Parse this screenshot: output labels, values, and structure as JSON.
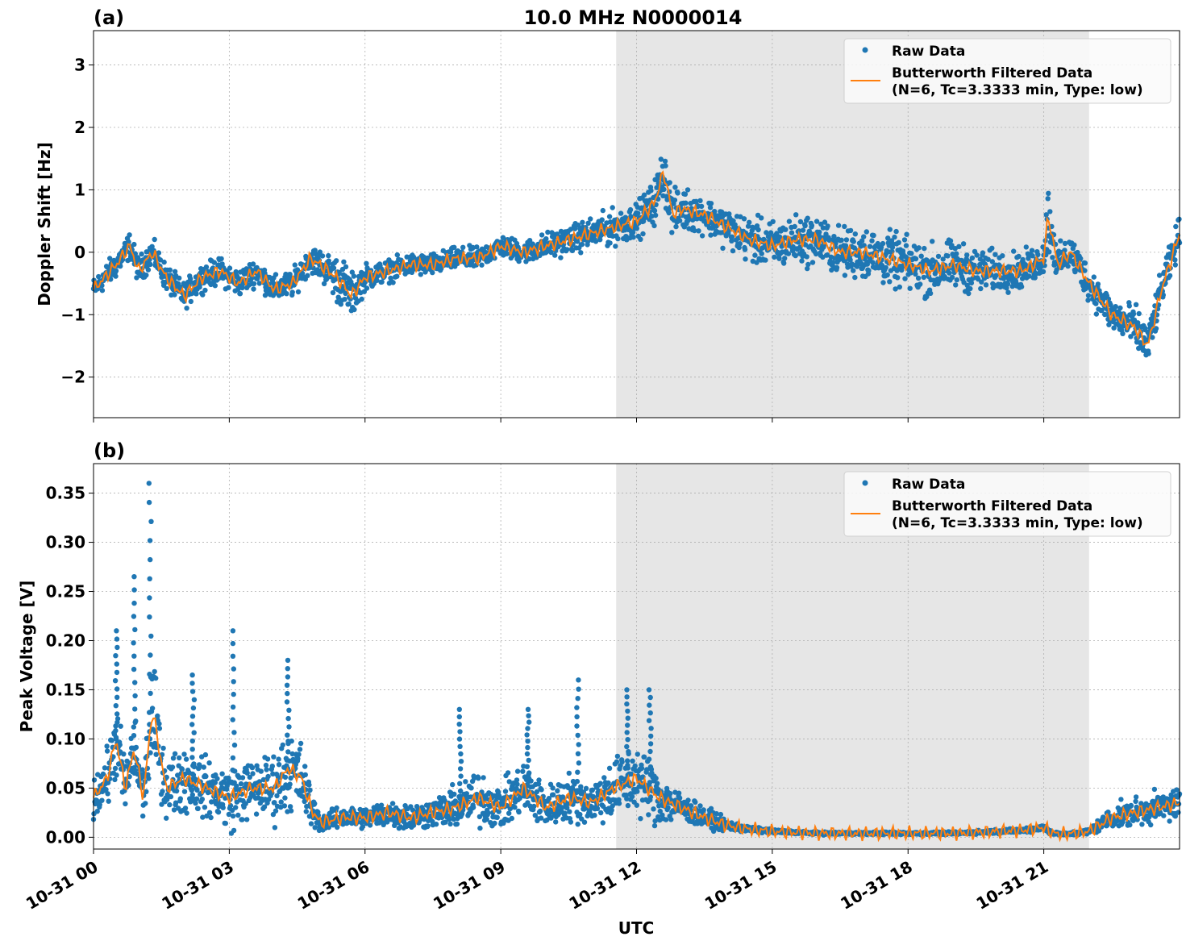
{
  "title": "10.0 MHz N0000014",
  "x_label": "UTC",
  "shading": {
    "start_hour": 11.55,
    "end_hour": 22.0,
    "color": "#e6e6e6"
  },
  "colors": {
    "raw": "#1f77b4",
    "filtered": "#ff7f0e",
    "grid": "#b0b0b0"
  },
  "legend": {
    "raw_label": "Raw Data",
    "filtered_label_line1": "Butterworth Filtered Data",
    "filtered_label_line2": "(N=6, Tc=3.3333 min, Type: low)",
    "placement": "top-right"
  },
  "chart_data": [
    {
      "type": "scatter",
      "panel_label": "(a)",
      "ylabel": "Doppler Shift [Hz]",
      "xlim": [
        "10-31 00:00",
        "10-31 24:00"
      ],
      "ylim": [
        -2.65,
        3.55
      ],
      "yticks": [
        -2,
        -1,
        0,
        1,
        2,
        3
      ],
      "ytick_labels": [
        "−2",
        "−1",
        "0",
        "1",
        "2",
        "3"
      ],
      "xticks_hours": [
        0,
        3,
        6,
        9,
        12,
        15,
        18,
        21
      ],
      "grid": true,
      "series": [
        {
          "name": "Butterworth Filtered Data",
          "style": "line",
          "x_hours": [
            0,
            0.5,
            0.8,
            1.0,
            1.3,
            1.6,
            2.0,
            2.4,
            2.8,
            3.2,
            3.6,
            4.0,
            4.4,
            4.8,
            5.2,
            5.5,
            5.7,
            6.0,
            6.5,
            7.0,
            7.5,
            8.0,
            8.5,
            9.0,
            9.5,
            10.0,
            10.5,
            11.0,
            11.5,
            12.0,
            12.4,
            12.6,
            12.8,
            13.0,
            13.5,
            14.0,
            14.5,
            15.0,
            15.5,
            16.0,
            16.5,
            17.0,
            17.5,
            18.0,
            18.5,
            19.0,
            19.5,
            20.0,
            20.5,
            21.0,
            21.1,
            21.3,
            21.6,
            22.0,
            22.5,
            23.0,
            23.3,
            23.6,
            24.0
          ],
          "values": [
            -0.6,
            -0.2,
            0.1,
            -0.3,
            0.0,
            -0.4,
            -0.7,
            -0.4,
            -0.3,
            -0.5,
            -0.3,
            -0.6,
            -0.5,
            -0.1,
            -0.3,
            -0.5,
            -0.7,
            -0.4,
            -0.3,
            -0.2,
            -0.2,
            -0.1,
            -0.1,
            0.1,
            0.0,
            0.1,
            0.2,
            0.3,
            0.4,
            0.5,
            0.8,
            1.3,
            0.6,
            0.7,
            0.6,
            0.4,
            0.2,
            0.1,
            0.2,
            0.2,
            0.0,
            0.0,
            -0.1,
            -0.2,
            -0.3,
            -0.2,
            -0.3,
            -0.3,
            -0.3,
            -0.1,
            0.6,
            -0.2,
            0.0,
            -0.5,
            -1.0,
            -1.2,
            -1.5,
            -0.6,
            0.3
          ]
        },
        {
          "name": "Raw Data",
          "style": "markers",
          "x_hours": [
            0,
            0.5,
            0.8,
            1.0,
            1.3,
            1.6,
            2.0,
            2.4,
            2.8,
            3.2,
            3.6,
            4.0,
            4.4,
            4.8,
            5.2,
            5.5,
            5.7,
            6.0,
            6.5,
            7.0,
            7.5,
            8.0,
            8.5,
            9.0,
            9.5,
            10.0,
            10.5,
            11.0,
            11.5,
            12.0,
            12.4,
            12.6,
            12.8,
            13.0,
            13.5,
            14.0,
            14.5,
            15.0,
            15.5,
            16.0,
            16.5,
            17.0,
            17.5,
            18.0,
            18.5,
            19.0,
            19.5,
            20.0,
            20.5,
            21.0,
            21.1,
            21.3,
            21.6,
            22.0,
            22.5,
            23.0,
            23.3,
            23.6,
            24.0
          ],
          "values": [
            -0.6,
            -0.2,
            0.1,
            -0.3,
            0.0,
            -0.4,
            -0.7,
            -0.4,
            -0.3,
            -0.5,
            -0.3,
            -0.6,
            -0.5,
            -0.1,
            -0.3,
            -0.5,
            -0.7,
            -0.4,
            -0.3,
            -0.2,
            -0.2,
            -0.1,
            -0.1,
            0.1,
            0.0,
            0.1,
            0.2,
            0.3,
            0.4,
            0.5,
            0.8,
            1.3,
            0.6,
            0.7,
            0.6,
            0.4,
            0.2,
            0.1,
            0.2,
            0.2,
            0.0,
            0.0,
            -0.1,
            -0.2,
            -0.3,
            -0.2,
            -0.3,
            -0.3,
            -0.3,
            -0.1,
            0.6,
            -0.2,
            0.0,
            -0.5,
            -1.0,
            -1.2,
            -1.5,
            -0.6,
            0.3
          ],
          "spread": [
            0.25,
            0.3,
            0.3,
            0.3,
            0.3,
            0.3,
            0.3,
            0.3,
            0.3,
            0.3,
            0.3,
            0.3,
            0.3,
            0.3,
            0.4,
            0.6,
            0.5,
            0.3,
            0.25,
            0.25,
            0.25,
            0.25,
            0.25,
            0.25,
            0.25,
            0.3,
            0.3,
            0.35,
            0.4,
            0.4,
            0.5,
            0.6,
            0.5,
            0.5,
            0.4,
            0.45,
            0.5,
            0.55,
            0.55,
            0.55,
            0.55,
            0.6,
            0.6,
            0.6,
            0.6,
            0.55,
            0.5,
            0.45,
            0.4,
            0.4,
            0.8,
            0.4,
            0.4,
            0.4,
            0.4,
            0.5,
            0.5,
            0.4,
            0.4
          ]
        }
      ]
    },
    {
      "type": "scatter",
      "panel_label": "(b)",
      "ylabel": "Peak Voltage [V]",
      "xlim": [
        "10-31 00:00",
        "10-31 24:00"
      ],
      "ylim": [
        -0.012,
        0.38
      ],
      "yticks": [
        0.0,
        0.05,
        0.1,
        0.15,
        0.2,
        0.25,
        0.3,
        0.35
      ],
      "ytick_labels": [
        "0.00",
        "0.05",
        "0.10",
        "0.15",
        "0.20",
        "0.25",
        "0.30",
        "0.35"
      ],
      "xticks_hours": [
        0,
        3,
        6,
        9,
        12,
        15,
        18,
        21
      ],
      "xtick_labels": [
        "10-31 00",
        "10-31 03",
        "10-31 06",
        "10-31 09",
        "10-31 12",
        "10-31 15",
        "10-31 18",
        "10-31 21"
      ],
      "grid": true,
      "series": [
        {
          "name": "Butterworth Filtered Data",
          "style": "line",
          "x_hours": [
            0,
            0.3,
            0.5,
            0.7,
            0.9,
            1.1,
            1.3,
            1.6,
            2.0,
            2.5,
            3.0,
            3.5,
            4.0,
            4.3,
            4.6,
            4.8,
            5.0,
            5.5,
            6.0,
            6.5,
            7.0,
            7.5,
            8.0,
            8.5,
            9.0,
            9.5,
            10.0,
            10.5,
            11.0,
            11.5,
            12.0,
            12.5,
            13.0,
            13.5,
            14.0,
            14.5,
            15.0,
            15.5,
            16.0,
            17.0,
            18.0,
            19.0,
            20.0,
            20.5,
            21.0,
            21.2,
            21.5,
            22.0,
            22.5,
            23.0,
            23.5,
            24.0
          ],
          "values": [
            0.04,
            0.06,
            0.1,
            0.05,
            0.09,
            0.04,
            0.13,
            0.05,
            0.06,
            0.05,
            0.04,
            0.05,
            0.05,
            0.07,
            0.06,
            0.03,
            0.015,
            0.02,
            0.02,
            0.025,
            0.02,
            0.025,
            0.03,
            0.04,
            0.03,
            0.05,
            0.03,
            0.04,
            0.035,
            0.05,
            0.06,
            0.04,
            0.03,
            0.02,
            0.012,
            0.008,
            0.006,
            0.005,
            0.004,
            0.004,
            0.004,
            0.004,
            0.006,
            0.007,
            0.01,
            0.004,
            0.003,
            0.006,
            0.02,
            0.025,
            0.03,
            0.035
          ]
        },
        {
          "name": "Raw Data",
          "style": "markers",
          "x_hours": [
            0,
            0.3,
            0.5,
            0.7,
            0.9,
            1.1,
            1.3,
            1.6,
            2.0,
            2.5,
            3.0,
            3.5,
            4.0,
            4.3,
            4.6,
            4.8,
            5.0,
            5.5,
            6.0,
            6.5,
            7.0,
            7.5,
            8.0,
            8.5,
            9.0,
            9.5,
            10.0,
            10.5,
            11.0,
            11.5,
            12.0,
            12.5,
            13.0,
            13.5,
            14.0,
            14.5,
            15.0,
            15.5,
            16.0,
            17.0,
            18.0,
            19.0,
            20.0,
            20.5,
            21.0,
            21.2,
            21.5,
            22.0,
            22.5,
            23.0,
            23.5,
            24.0
          ],
          "values": [
            0.04,
            0.06,
            0.1,
            0.05,
            0.09,
            0.04,
            0.13,
            0.05,
            0.06,
            0.05,
            0.04,
            0.05,
            0.05,
            0.07,
            0.06,
            0.03,
            0.015,
            0.02,
            0.02,
            0.025,
            0.02,
            0.025,
            0.03,
            0.04,
            0.03,
            0.05,
            0.03,
            0.04,
            0.035,
            0.05,
            0.06,
            0.04,
            0.03,
            0.02,
            0.012,
            0.008,
            0.006,
            0.005,
            0.004,
            0.004,
            0.004,
            0.004,
            0.006,
            0.007,
            0.01,
            0.004,
            0.003,
            0.006,
            0.02,
            0.025,
            0.03,
            0.035
          ],
          "spread": [
            0.03,
            0.04,
            0.06,
            0.04,
            0.06,
            0.04,
            0.08,
            0.04,
            0.05,
            0.04,
            0.05,
            0.04,
            0.05,
            0.06,
            0.05,
            0.03,
            0.012,
            0.015,
            0.015,
            0.02,
            0.02,
            0.02,
            0.03,
            0.04,
            0.03,
            0.04,
            0.03,
            0.035,
            0.03,
            0.045,
            0.05,
            0.04,
            0.02,
            0.015,
            0.008,
            0.004,
            0.003,
            0.002,
            0.002,
            0.002,
            0.002,
            0.002,
            0.003,
            0.003,
            0.005,
            0.002,
            0.002,
            0.004,
            0.015,
            0.02,
            0.02,
            0.025
          ],
          "peaks": [
            {
              "x_hour": 0.5,
              "value": 0.21
            },
            {
              "x_hour": 0.9,
              "value": 0.265
            },
            {
              "x_hour": 1.25,
              "value": 0.36
            },
            {
              "x_hour": 2.2,
              "value": 0.165
            },
            {
              "x_hour": 3.1,
              "value": 0.21
            },
            {
              "x_hour": 4.3,
              "value": 0.18
            },
            {
              "x_hour": 8.1,
              "value": 0.13
            },
            {
              "x_hour": 9.6,
              "value": 0.13
            },
            {
              "x_hour": 10.7,
              "value": 0.16
            },
            {
              "x_hour": 11.8,
              "value": 0.15
            },
            {
              "x_hour": 12.3,
              "value": 0.15
            }
          ]
        }
      ]
    }
  ]
}
